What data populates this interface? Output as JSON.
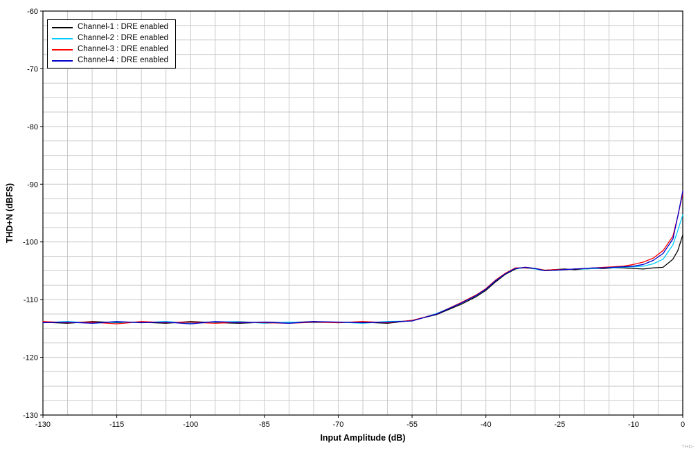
{
  "chart_data": {
    "type": "line",
    "title": "",
    "xlabel": "Input Amplitude (dB)",
    "ylabel": "THD+N (dBFS)",
    "xlim": [
      -130,
      0
    ],
    "ylim": [
      -130,
      -60
    ],
    "x_tick_labels": [
      -130,
      -115,
      -100,
      -85,
      -70,
      -55,
      -40,
      -25,
      -10,
      0
    ],
    "y_tick_labels": [
      -130,
      -120,
      -110,
      -100,
      -90,
      -80,
      -70,
      -60
    ],
    "x_minor_step": 5,
    "y_minor_step": 2.5,
    "grid": true,
    "grid_color": "#c9c9c9",
    "legend_position": "top-left",
    "watermark": "THD-",
    "x": [
      -130,
      -125,
      -120,
      -115,
      -110,
      -105,
      -100,
      -95,
      -90,
      -85,
      -80,
      -75,
      -70,
      -65,
      -60,
      -55,
      -50,
      -45,
      -42,
      -40,
      -38,
      -36,
      -34,
      -32,
      -30,
      -28,
      -26,
      -24,
      -22,
      -20,
      -18,
      -16,
      -14,
      -12,
      -10,
      -8,
      -6,
      -4,
      -2,
      -1,
      0
    ],
    "series": [
      {
        "name": "Channel-1 : DRE enabled",
        "color": "#000000",
        "values": [
          -113.9,
          -114.1,
          -113.8,
          -114.0,
          -113.9,
          -114.1,
          -113.8,
          -114.0,
          -114.1,
          -113.9,
          -114.0,
          -113.8,
          -114.0,
          -113.9,
          -114.1,
          -113.6,
          -112.6,
          -110.8,
          -109.5,
          -108.4,
          -106.9,
          -105.6,
          -104.7,
          -104.4,
          -104.6,
          -104.9,
          -104.8,
          -104.7,
          -104.8,
          -104.7,
          -104.6,
          -104.6,
          -104.5,
          -104.5,
          -104.6,
          -104.7,
          -104.5,
          -104.4,
          -103.0,
          -101.5,
          -98.8
        ]
      },
      {
        "name": "Channel-2 : DRE enabled",
        "color": "#00ccff",
        "values": [
          -114.0,
          -113.8,
          -114.1,
          -113.9,
          -114.0,
          -113.8,
          -114.1,
          -113.9,
          -113.8,
          -114.1,
          -113.9,
          -114.0,
          -113.9,
          -114.1,
          -113.8,
          -113.7,
          -112.4,
          -110.6,
          -109.3,
          -108.2,
          -106.7,
          -105.5,
          -104.6,
          -104.5,
          -104.7,
          -105.0,
          -104.9,
          -104.8,
          -104.7,
          -104.7,
          -104.6,
          -104.5,
          -104.5,
          -104.4,
          -104.3,
          -104.2,
          -103.8,
          -103.0,
          -100.5,
          -98.0,
          -95.3
        ]
      },
      {
        "name": "Channel-3 : DRE enabled",
        "color": "#ff0000",
        "values": [
          -113.8,
          -114.0,
          -113.9,
          -114.2,
          -113.8,
          -114.0,
          -113.9,
          -114.1,
          -113.9,
          -114.0,
          -114.1,
          -113.9,
          -114.0,
          -113.8,
          -114.0,
          -113.6,
          -112.5,
          -110.5,
          -109.2,
          -108.1,
          -106.6,
          -105.4,
          -104.5,
          -104.5,
          -104.6,
          -104.9,
          -104.8,
          -104.8,
          -104.7,
          -104.6,
          -104.5,
          -104.4,
          -104.3,
          -104.2,
          -103.9,
          -103.5,
          -102.8,
          -101.5,
          -99.0,
          -95.5,
          -91.6
        ]
      },
      {
        "name": "Channel-4 : DRE enabled",
        "color": "#0000cc",
        "values": [
          -114.0,
          -113.9,
          -114.1,
          -113.8,
          -114.0,
          -113.9,
          -114.2,
          -113.8,
          -114.0,
          -113.9,
          -114.1,
          -113.8,
          -113.9,
          -114.0,
          -113.9,
          -113.7,
          -112.5,
          -110.6,
          -109.3,
          -108.2,
          -106.7,
          -105.5,
          -104.6,
          -104.4,
          -104.6,
          -105.0,
          -104.9,
          -104.8,
          -104.7,
          -104.6,
          -104.5,
          -104.5,
          -104.4,
          -104.3,
          -104.2,
          -103.9,
          -103.2,
          -102.0,
          -99.5,
          -95.5,
          -91.2
        ]
      }
    ]
  }
}
